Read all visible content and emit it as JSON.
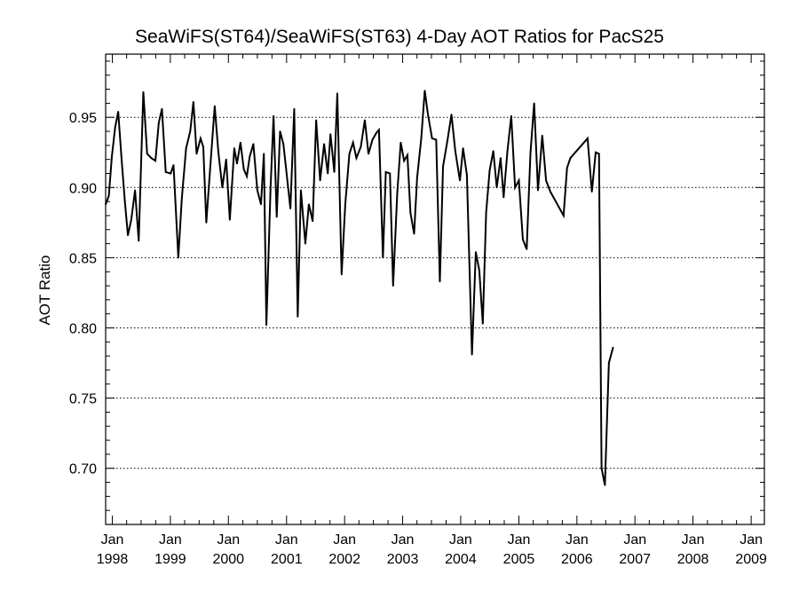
{
  "chart_data": {
    "type": "line",
    "title": "SeaWiFS(ST64)/SeaWiFS(ST63) 4-Day AOT Ratios for PacS25",
    "xlabel": "",
    "ylabel": "AOT Ratio",
    "xlim": [
      "1997-11-20",
      "2009-03-25"
    ],
    "ylim": [
      0.66,
      0.995
    ],
    "grid": "horizontal dotted",
    "x_ticks": [
      {
        "date": "1998-01-01",
        "month": "Jan",
        "year": "1998"
      },
      {
        "date": "1999-01-01",
        "month": "Jan",
        "year": "1999"
      },
      {
        "date": "2000-01-01",
        "month": "Jan",
        "year": "2000"
      },
      {
        "date": "2001-01-01",
        "month": "Jan",
        "year": "2001"
      },
      {
        "date": "2002-01-01",
        "month": "Jan",
        "year": "2002"
      },
      {
        "date": "2003-01-01",
        "month": "Jan",
        "year": "2003"
      },
      {
        "date": "2004-01-01",
        "month": "Jan",
        "year": "2004"
      },
      {
        "date": "2005-01-01",
        "month": "Jan",
        "year": "2005"
      },
      {
        "date": "2006-01-01",
        "month": "Jan",
        "year": "2006"
      },
      {
        "date": "2007-01-01",
        "month": "Jan",
        "year": "2007"
      },
      {
        "date": "2008-01-01",
        "month": "Jan",
        "year": "2008"
      },
      {
        "date": "2009-01-01",
        "month": "Jan",
        "year": "2009"
      }
    ],
    "y_ticks": [
      {
        "value": 0.95,
        "label": "0.95"
      },
      {
        "value": 0.9,
        "label": "0.90"
      },
      {
        "value": 0.85,
        "label": "0.85"
      },
      {
        "value": 0.8,
        "label": "0.80"
      },
      {
        "value": 0.75,
        "label": "0.75"
      },
      {
        "value": 0.7,
        "label": "0.70"
      }
    ],
    "series": [
      {
        "color": "#000000",
        "points": [
          [
            "1997-11-20",
            0.888
          ],
          [
            "1997-12-10",
            0.894
          ],
          [
            "1997-12-29",
            0.922
          ],
          [
            "1998-01-19",
            0.943
          ],
          [
            "1998-02-07",
            0.954
          ],
          [
            "1998-03-01",
            0.919
          ],
          [
            "1998-03-21",
            0.89
          ],
          [
            "1998-04-09",
            0.866
          ],
          [
            "1998-04-30",
            0.877
          ],
          [
            "1998-05-24",
            0.898
          ],
          [
            "1998-06-16",
            0.862
          ],
          [
            "1998-07-15",
            0.968
          ],
          [
            "1998-08-08",
            0.924
          ],
          [
            "1998-09-03",
            0.921
          ],
          [
            "1998-09-29",
            0.919
          ],
          [
            "1998-10-20",
            0.946
          ],
          [
            "1998-11-09",
            0.956
          ],
          [
            "1998-12-03",
            0.911
          ],
          [
            "1999-01-03",
            0.91
          ],
          [
            "1999-01-21",
            0.916
          ],
          [
            "1999-02-20",
            0.85
          ],
          [
            "1999-03-14",
            0.892
          ],
          [
            "1999-04-10",
            0.928
          ],
          [
            "1999-05-06",
            0.94
          ],
          [
            "1999-05-26",
            0.961
          ],
          [
            "1999-06-15",
            0.924
          ],
          [
            "1999-07-10",
            0.935
          ],
          [
            "1999-07-27",
            0.929
          ],
          [
            "1999-08-15",
            0.875
          ],
          [
            "1999-09-08",
            0.913
          ],
          [
            "1999-10-07",
            0.958
          ],
          [
            "1999-10-30",
            0.925
          ],
          [
            "1999-11-24",
            0.9
          ],
          [
            "1999-12-18",
            0.92
          ],
          [
            "2000-01-10",
            0.877
          ],
          [
            "2000-02-07",
            0.928
          ],
          [
            "2000-02-24",
            0.917
          ],
          [
            "2000-03-17",
            0.932
          ],
          [
            "2000-04-07",
            0.913
          ],
          [
            "2000-04-26",
            0.908
          ],
          [
            "2000-05-14",
            0.922
          ],
          [
            "2000-06-06",
            0.931
          ],
          [
            "2000-07-01",
            0.898
          ],
          [
            "2000-07-24",
            0.888
          ],
          [
            "2000-08-11",
            0.924
          ],
          [
            "2000-08-27",
            0.802
          ],
          [
            "2000-09-22",
            0.899
          ],
          [
            "2000-10-11",
            0.951
          ],
          [
            "2000-10-31",
            0.879
          ],
          [
            "2000-11-21",
            0.94
          ],
          [
            "2000-12-12",
            0.931
          ],
          [
            "2001-01-05",
            0.906
          ],
          [
            "2001-01-25",
            0.885
          ],
          [
            "2001-02-18",
            0.956
          ],
          [
            "2001-03-12",
            0.808
          ],
          [
            "2001-04-01",
            0.898
          ],
          [
            "2001-04-29",
            0.86
          ],
          [
            "2001-05-21",
            0.888
          ],
          [
            "2001-06-14",
            0.876
          ],
          [
            "2001-07-06",
            0.948
          ],
          [
            "2001-07-31",
            0.905
          ],
          [
            "2001-08-25",
            0.931
          ],
          [
            "2001-09-17",
            0.91
          ],
          [
            "2001-10-04",
            0.938
          ],
          [
            "2001-10-28",
            0.911
          ],
          [
            "2001-11-16",
            0.967
          ],
          [
            "2001-12-13",
            0.838
          ],
          [
            "2002-01-05",
            0.888
          ],
          [
            "2002-01-31",
            0.924
          ],
          [
            "2002-02-23",
            0.932
          ],
          [
            "2002-03-16",
            0.921
          ],
          [
            "2002-04-13",
            0.929
          ],
          [
            "2002-05-08",
            0.948
          ],
          [
            "2002-05-31",
            0.924
          ],
          [
            "2002-06-25",
            0.934
          ],
          [
            "2002-07-20",
            0.939
          ],
          [
            "2002-08-05",
            0.941
          ],
          [
            "2002-08-30",
            0.85
          ],
          [
            "2002-09-17",
            0.911
          ],
          [
            "2002-10-13",
            0.91
          ],
          [
            "2002-11-02",
            0.83
          ],
          [
            "2002-11-28",
            0.896
          ],
          [
            "2002-12-20",
            0.932
          ],
          [
            "2003-01-10",
            0.919
          ],
          [
            "2003-01-31",
            0.923
          ],
          [
            "2003-02-19",
            0.882
          ],
          [
            "2003-03-14",
            0.867
          ],
          [
            "2003-04-02",
            0.907
          ],
          [
            "2003-04-28",
            0.935
          ],
          [
            "2003-05-20",
            0.969
          ],
          [
            "2003-06-09",
            0.952
          ],
          [
            "2003-07-05",
            0.935
          ],
          [
            "2003-07-31",
            0.934
          ],
          [
            "2003-08-23",
            0.833
          ],
          [
            "2003-09-12",
            0.915
          ],
          [
            "2003-10-09",
            0.933
          ],
          [
            "2003-11-04",
            0.952
          ],
          [
            "2003-11-28",
            0.926
          ],
          [
            "2003-12-27",
            0.905
          ],
          [
            "2004-01-16",
            0.928
          ],
          [
            "2004-02-09",
            0.909
          ],
          [
            "2004-03-12",
            0.781
          ],
          [
            "2004-04-05",
            0.854
          ],
          [
            "2004-04-27",
            0.841
          ],
          [
            "2004-05-19",
            0.803
          ],
          [
            "2004-06-09",
            0.882
          ],
          [
            "2004-07-01",
            0.912
          ],
          [
            "2004-07-24",
            0.926
          ],
          [
            "2004-08-15",
            0.9
          ],
          [
            "2004-09-08",
            0.921
          ],
          [
            "2004-09-27",
            0.893
          ],
          [
            "2004-10-21",
            0.926
          ],
          [
            "2004-11-14",
            0.951
          ],
          [
            "2004-12-08",
            0.9
          ],
          [
            "2005-01-01",
            0.905
          ],
          [
            "2005-01-26",
            0.863
          ],
          [
            "2005-02-19",
            0.856
          ],
          [
            "2005-03-15",
            0.925
          ],
          [
            "2005-04-07",
            0.96
          ],
          [
            "2005-05-01",
            0.898
          ],
          [
            "2005-05-28",
            0.937
          ],
          [
            "2005-06-21",
            0.905
          ],
          [
            "2005-07-18",
            0.897
          ],
          [
            "2005-10-09",
            0.88
          ],
          [
            "2005-10-31",
            0.914
          ],
          [
            "2005-11-21",
            0.921
          ],
          [
            "2006-03-09",
            0.935
          ],
          [
            "2006-04-05",
            0.897
          ],
          [
            "2006-04-29",
            0.925
          ],
          [
            "2006-05-20",
            0.924
          ],
          [
            "2006-06-05",
            0.7
          ],
          [
            "2006-06-26",
            0.688
          ],
          [
            "2006-07-21",
            0.775
          ],
          [
            "2006-08-16",
            0.786
          ]
        ]
      }
    ]
  }
}
